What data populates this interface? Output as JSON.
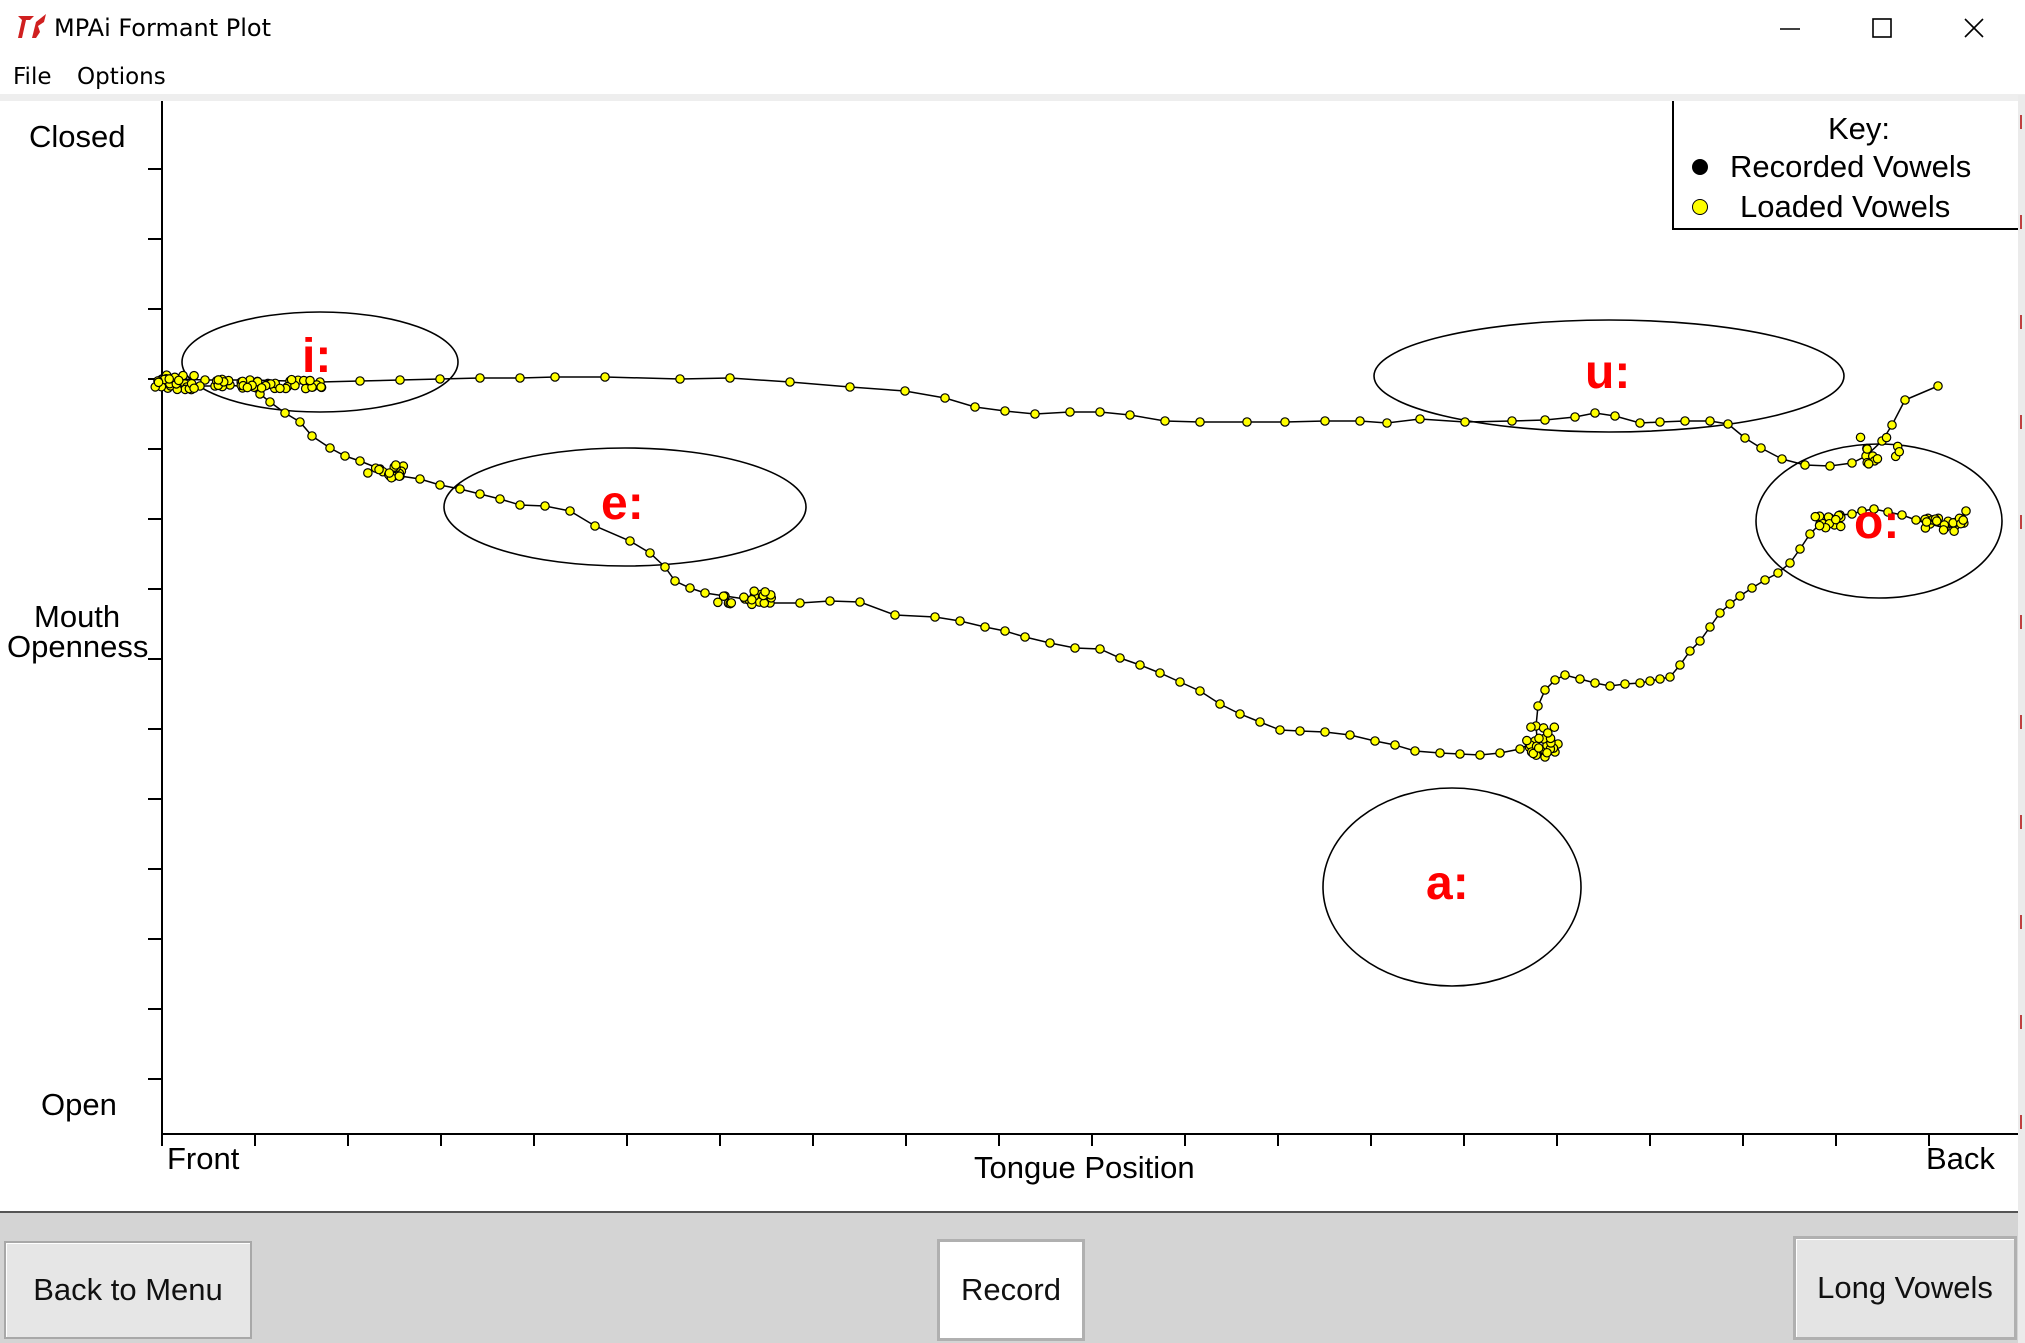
{
  "window": {
    "title": "MPAi Formant Plot",
    "controls": {
      "minimize": "minimize-icon",
      "maximize": "maximize-icon",
      "close": "close-icon"
    }
  },
  "menu": {
    "file": "File",
    "options": "Options"
  },
  "plot": {
    "y_top_label": "Closed",
    "y_mid_label_1": "Mouth",
    "y_mid_label_2": "Openness",
    "y_bottom_label": "Open",
    "x_left_label": "Front",
    "x_center_label": "Tongue Position",
    "x_right_label": "Back",
    "key": {
      "title": "Key:",
      "recorded": "Recorded Vowels",
      "loaded": "Loaded Vowels",
      "recorded_color": "#000000",
      "loaded_color": "#ffff00"
    },
    "vowels": [
      {
        "label": "i:",
        "color": "#ff0000"
      },
      {
        "label": "e:",
        "color": "#ff0000"
      },
      {
        "label": "u:",
        "color": "#ff0000"
      },
      {
        "label": "o:",
        "color": "#ff0000"
      },
      {
        "label": "a:",
        "color": "#ff0000"
      }
    ]
  },
  "buttons": {
    "back": "Back to Menu",
    "record": "Record",
    "long_vowels": "Long Vowels"
  }
}
